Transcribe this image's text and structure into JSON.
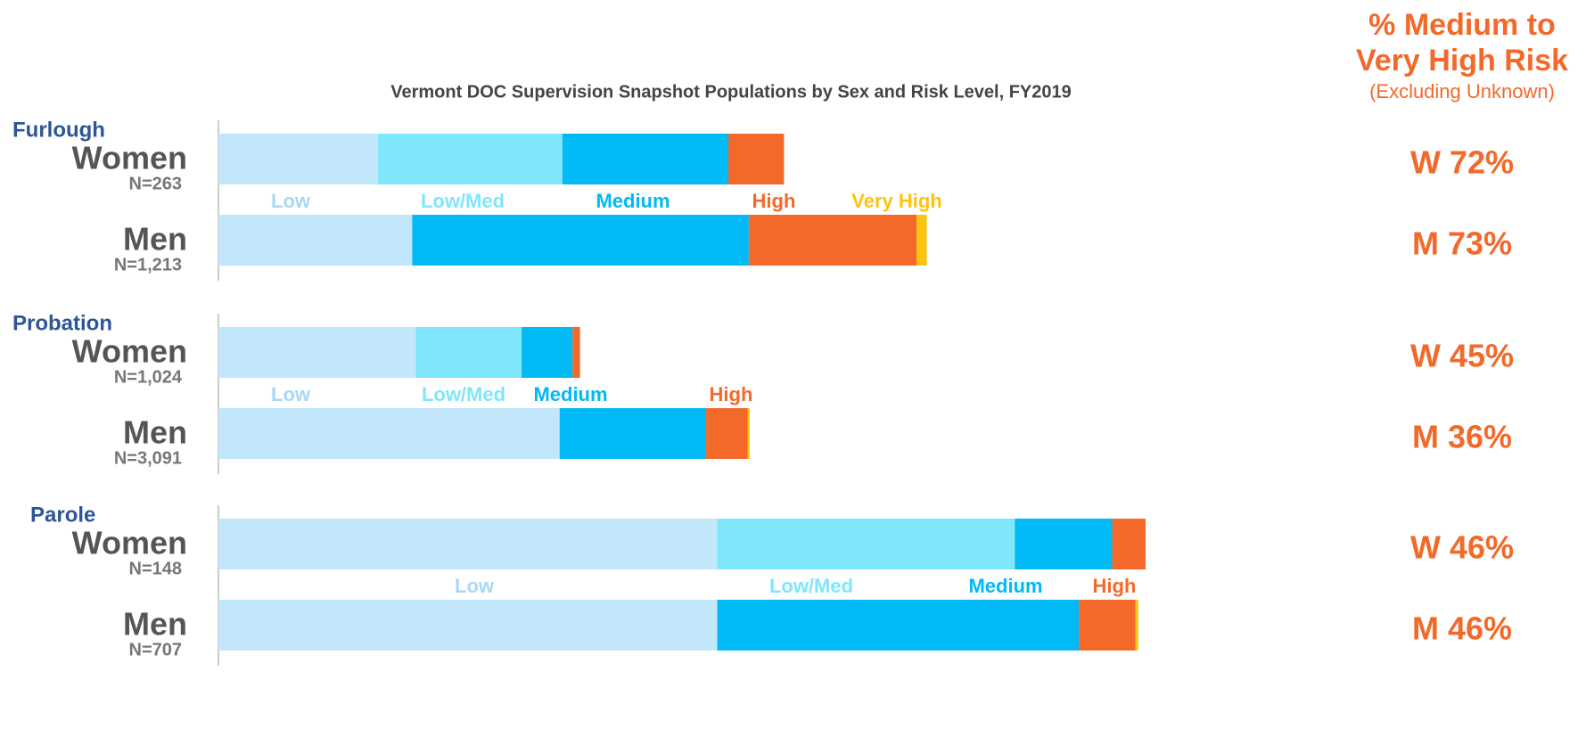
{
  "chart_data": {
    "type": "stacked_barh",
    "title": "Vermont DOC Supervision Snapshot Populations by Sex and Risk Level, FY2019",
    "side_title": [
      "% Medium to",
      "Very High Risk"
    ],
    "side_subtitle": "(Excluding Unknown)",
    "series": [
      {
        "name": "Low",
        "color": "#c2e7fa"
      },
      {
        "name": "Low/Med",
        "color": "#7fe6fb"
      },
      {
        "name": "Medium",
        "color": "#00b9f5"
      },
      {
        "name": "High",
        "color": "#f3692a"
      },
      {
        "name": "Very High",
        "color": "#ffc20e"
      }
    ],
    "groups": [
      {
        "name": "Furlough",
        "legend": [
          "Low",
          "Low/Med",
          "Medium",
          "High",
          "Very High"
        ],
        "rows": [
          {
            "label": "Women",
            "n": "N=263",
            "risk": "W 72%",
            "values": [
              17.2,
              19.9,
              17.9,
              6.0,
              0
            ]
          },
          {
            "label": "Men",
            "n": "N=1,213",
            "risk": "M 73%",
            "values": [
              20.9,
              0,
              36.3,
              18.1,
              1.1
            ]
          }
        ]
      },
      {
        "name": "Probation",
        "legend": [
          "Low",
          "Low/Med",
          "Medium",
          "High"
        ],
        "rows": [
          {
            "label": "Women",
            "n": "N=1,024",
            "risk": "W 45%",
            "values": [
              21.3,
              11.4,
              5.5,
              0.8,
              0
            ]
          },
          {
            "label": "Men",
            "n": "N=3,091",
            "risk": "M 36%",
            "values": [
              36.8,
              0,
              15.8,
              4.5,
              0.2
            ]
          }
        ]
      },
      {
        "name": "Parole",
        "legend": [
          "Low",
          "Low/Med",
          "Medium",
          "High"
        ],
        "rows": [
          {
            "label": "Women",
            "n": "N=148",
            "risk": "W 46%",
            "values": [
              53.8,
              32.1,
              10.5,
              3.6,
              0
            ]
          },
          {
            "label": "Men",
            "n": "N=707",
            "risk": "M 46%",
            "values": [
              53.8,
              0,
              39.0,
              6.1,
              0.3
            ]
          }
        ]
      }
    ]
  }
}
